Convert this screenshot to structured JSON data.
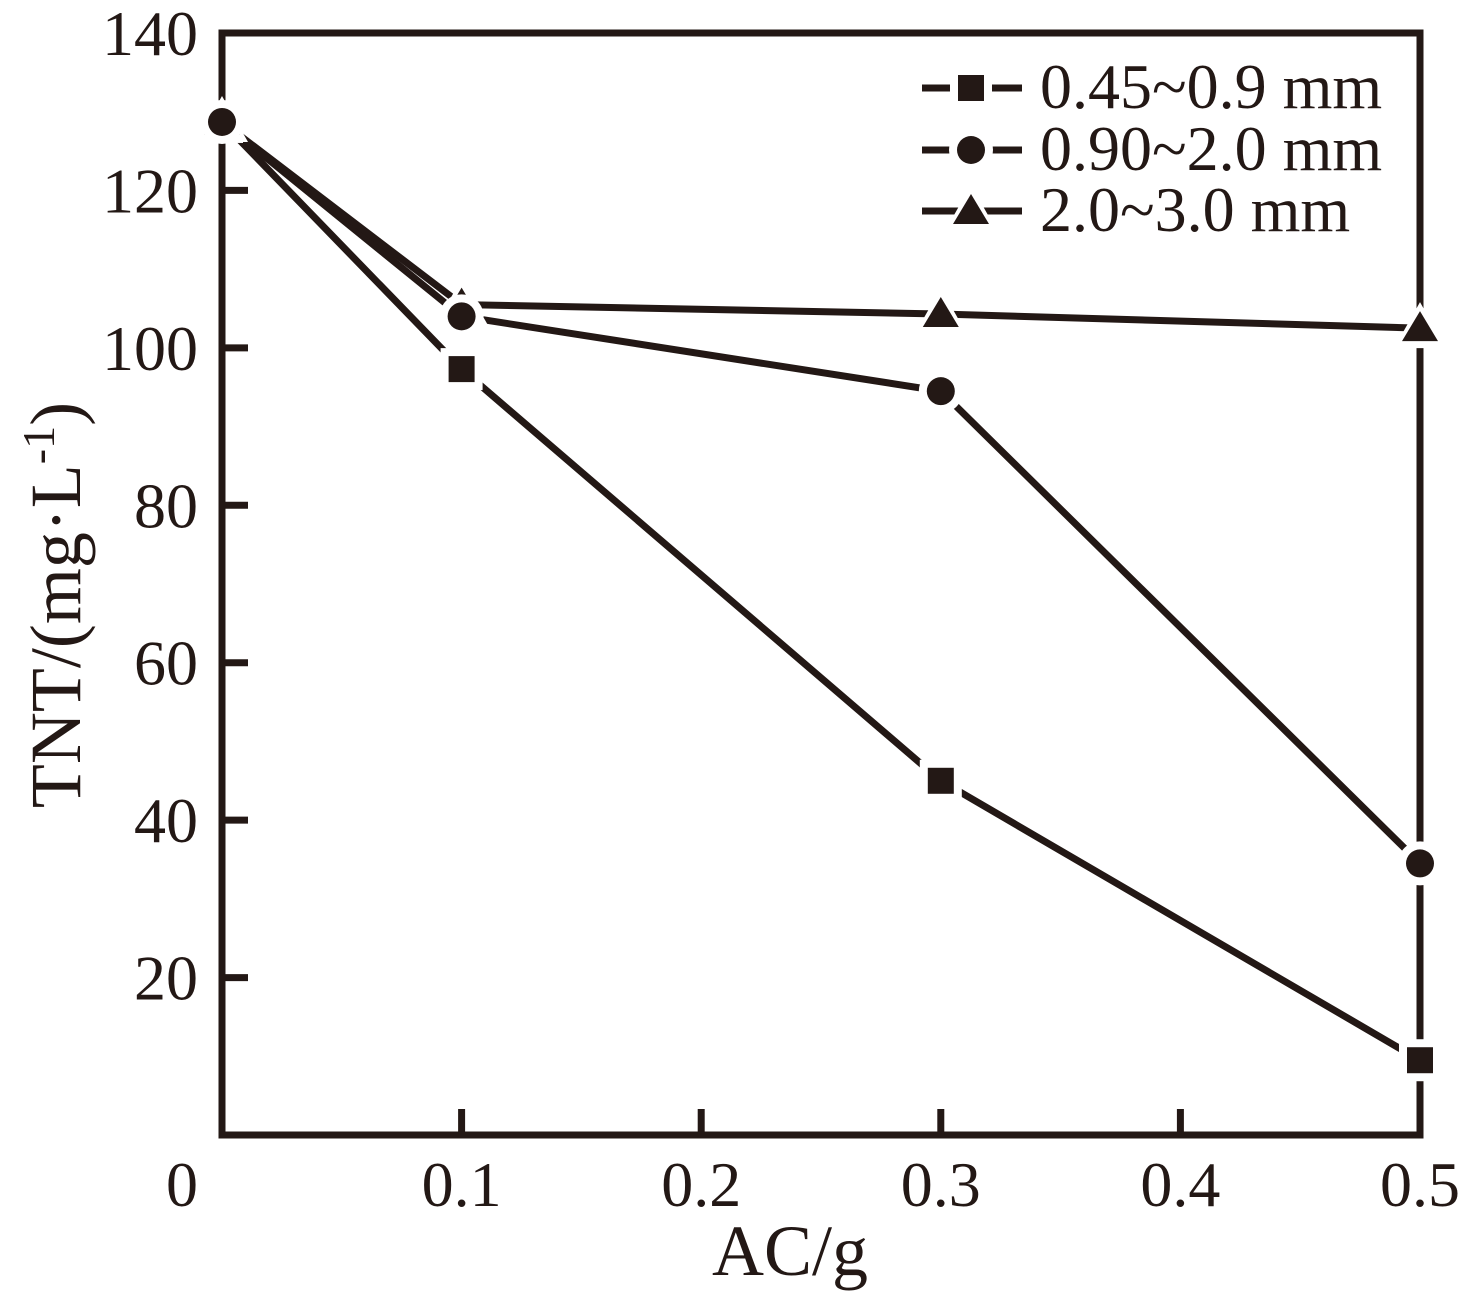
{
  "figure": {
    "background": "#ffffff",
    "ink_color": "#231815"
  },
  "chart_data": {
    "type": "line",
    "title": "",
    "xlabel": "AC/g",
    "ylabel": "TNT/(mg·L⁻¹)",
    "ylabel_parts": {
      "prefix": "TNT/(mg·L",
      "superscript": "-1",
      "suffix": ")"
    },
    "xlim": [
      0,
      0.5
    ],
    "ylim": [
      0,
      140
    ],
    "grid": false,
    "x": [
      0,
      0.1,
      0.3,
      0.5
    ],
    "series": [
      {
        "name": "0.45~0.9 mm",
        "marker": "square",
        "values": [
          128.7,
          97.3,
          45.0,
          9.5
        ]
      },
      {
        "name": "0.90~2.0 mm",
        "marker": "circle",
        "values": [
          128.7,
          104.0,
          94.5,
          34.5
        ]
      },
      {
        "name": "2.0~3.0 mm",
        "marker": "triangle",
        "values": [
          128.7,
          105.5,
          104.3,
          102.5
        ]
      }
    ],
    "xticks": {
      "values": [
        0,
        0.1,
        0.2,
        0.3,
        0.4,
        0.5
      ],
      "labels": [
        "0",
        "0.1",
        "0.2",
        "0.3",
        "0.4",
        "0.5"
      ]
    },
    "yticks": {
      "values": [
        20,
        40,
        60,
        80,
        100,
        120,
        140
      ],
      "labels": [
        "20",
        "40",
        "60",
        "80",
        "100",
        "120",
        "140"
      ]
    },
    "legend": {
      "position": "top-right-inside",
      "frame": false,
      "entries": [
        "0.45~0.9 mm",
        "0.90~2.0 mm",
        "2.0~3.0 mm"
      ]
    }
  }
}
